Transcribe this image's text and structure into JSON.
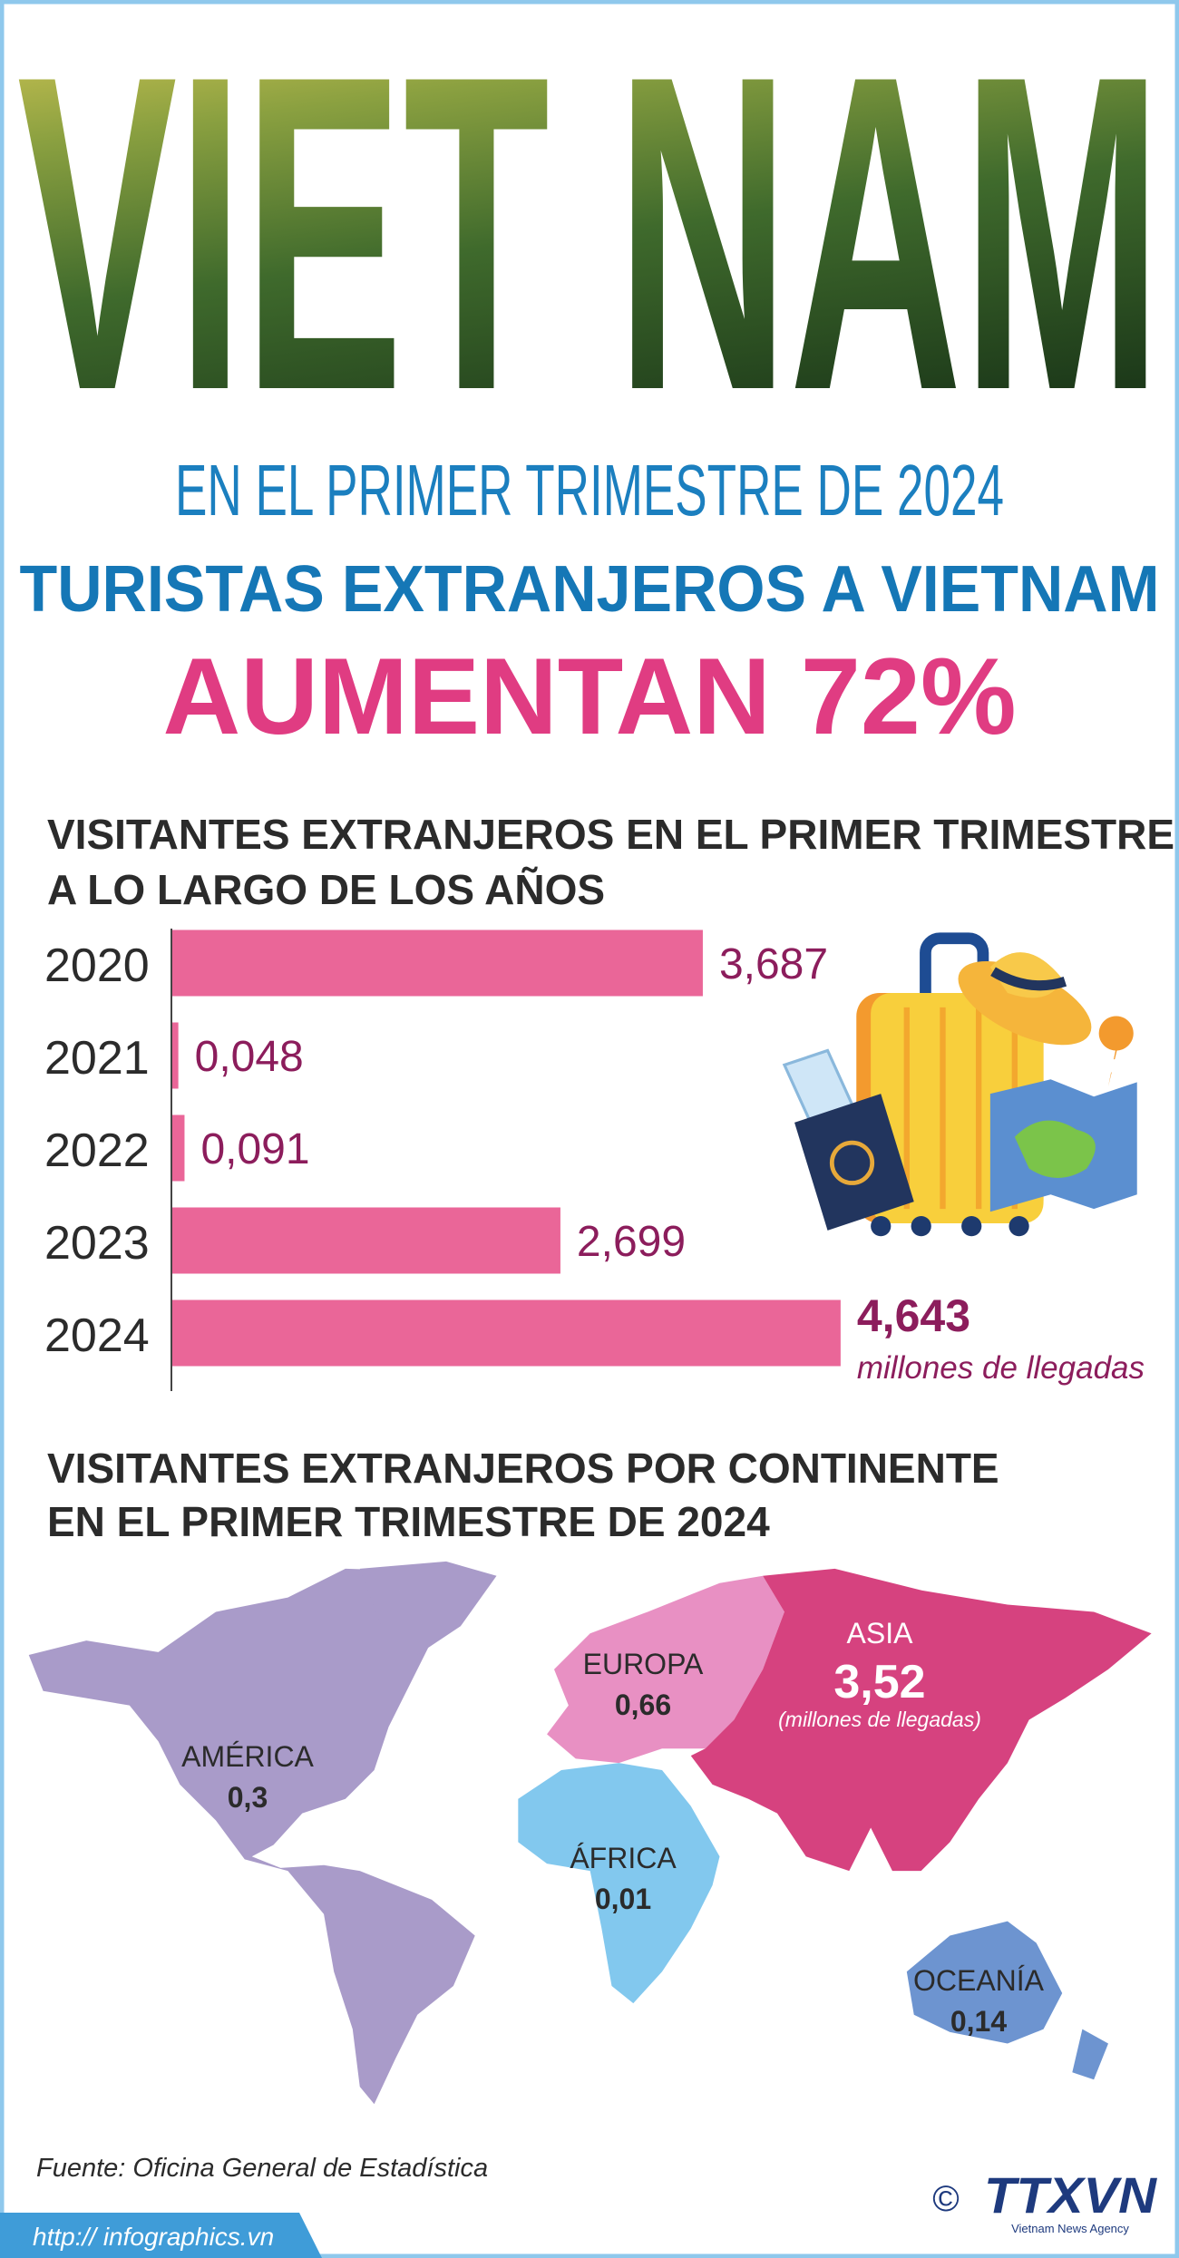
{
  "header": {
    "logo_word": "VIET NAM",
    "subtitle": "EN EL PRIMER TRIMESTRE DE 2024",
    "title": "TURISTAS EXTRANJEROS A VIETNAM",
    "highlight": "AUMENTAN 72%"
  },
  "chart_data": {
    "type": "bar",
    "orientation": "horizontal",
    "title_lines": [
      "VISITANTES EXTRANJEROS EN EL PRIMER TRIMESTRE",
      "A LO LARGO DE LOS AÑOS"
    ],
    "categories": [
      "2020",
      "2021",
      "2022",
      "2023",
      "2024"
    ],
    "values": [
      3.687,
      0.048,
      0.091,
      2.699,
      4.643
    ],
    "value_labels": [
      "3,687",
      "0,048",
      "0,091",
      "2,699",
      "4,643"
    ],
    "annotation": "millones de llegadas",
    "color": "#ea6698",
    "label_color": "#8c1d5c",
    "xlim": [
      0,
      6.5
    ]
  },
  "map": {
    "title_lines": [
      "VISITANTES EXTRANJEROS POR CONTINENTE",
      "EN EL PRIMER TRIMESTRE DE 2024"
    ],
    "regions": [
      {
        "name": "AMÉRICA",
        "value_label": "0,3"
      },
      {
        "name": "EUROPA",
        "value_label": "0,66"
      },
      {
        "name": "ASIA",
        "value_label": "3,52",
        "note": "(millones de llegadas)"
      },
      {
        "name": "ÁFRICA",
        "value_label": "0,01"
      },
      {
        "name": "OCEANÍA",
        "value_label": "0,14"
      }
    ]
  },
  "footer": {
    "source": "Fuente: Oficina General de Estadística",
    "url": "http:// infographics.vn",
    "copyright": "©",
    "agency": "TTXVN",
    "agency_sub": "Vietnam News Agency"
  }
}
